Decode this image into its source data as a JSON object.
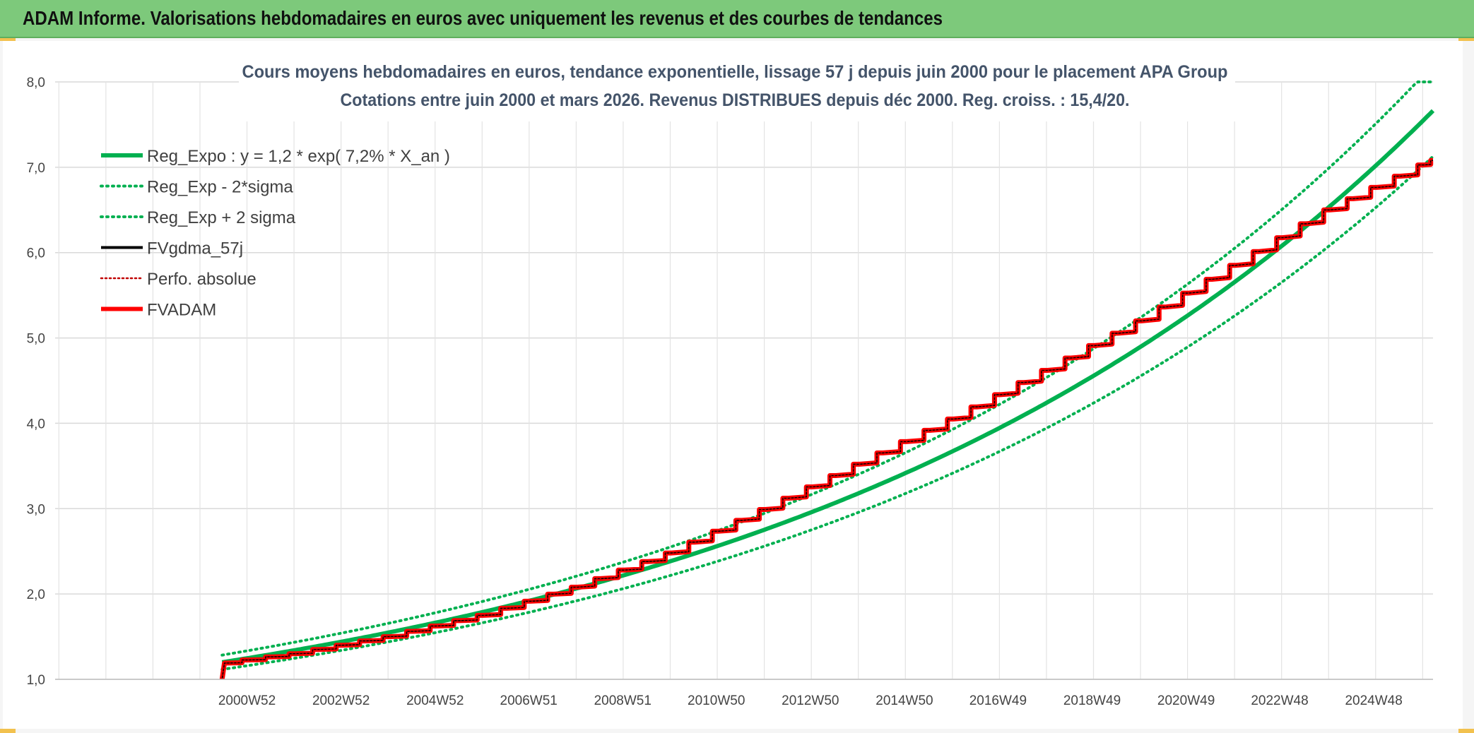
{
  "header": {
    "title": "ADAM Informe. Valorisations hebdomadaires en euros avec uniquement les revenus et des courbes de tendances"
  },
  "colors": {
    "header_bg": "#7dc97b",
    "trend_green": "#00b050",
    "fv_black": "#000000",
    "perf_red": "#c00000",
    "adam_red": "#ff0000",
    "grid": "#d9d9d9"
  },
  "chart_data": {
    "type": "line",
    "title_lines": [
      "Cours moyens hebdomadaires en euros, tendance exponentielle, lissage 57 j depuis juin 2000 pour le placement APA Group",
      "Cotations entre juin 2000 et mars 2026. Revenus DISTRIBUES depuis déc 2000. Reg. croiss. : 15,4/20."
    ],
    "x_tick_labels": [
      "2000W52",
      "2002W52",
      "2004W52",
      "2006W51",
      "2008W51",
      "2010W50",
      "2012W50",
      "2014W50",
      "2016W49",
      "2018W49",
      "2020W49",
      "2022W48",
      "2024W48"
    ],
    "x_tick_years": [
      2000.98,
      2002.98,
      2004.98,
      2006.97,
      2008.97,
      2010.96,
      2012.96,
      2014.96,
      2016.95,
      2018.95,
      2020.95,
      2022.94,
      2024.94
    ],
    "xlim": [
      1996.9,
      2026.2
    ],
    "data_start": 2000.45,
    "data_end": 2026.2,
    "ylim": [
      1.0,
      8.0
    ],
    "y_ticks": [
      "1,0",
      "2,0",
      "3,0",
      "4,0",
      "5,0",
      "6,0",
      "7,0",
      "8,0"
    ],
    "grid": true,
    "legend_position": "top-left",
    "regression": {
      "a": 1.2,
      "rate": 0.072,
      "origin": 2000.45,
      "sigma_factor_low": 0.93,
      "sigma_factor_high": 1.07
    },
    "adam_points": [
      [
        2000.45,
        1.0
      ],
      [
        2000.5,
        1.19
      ],
      [
        2002.0,
        1.3
      ],
      [
        2004.0,
        1.5
      ],
      [
        2006.0,
        1.75
      ],
      [
        2008.0,
        2.08
      ],
      [
        2010.0,
        2.48
      ],
      [
        2012.0,
        2.99
      ],
      [
        2014.0,
        3.52
      ],
      [
        2016.0,
        4.05
      ],
      [
        2018.0,
        4.62
      ],
      [
        2020.0,
        5.2
      ],
      [
        2022.0,
        5.85
      ],
      [
        2024.0,
        6.5
      ],
      [
        2026.2,
        7.08
      ]
    ],
    "series": [
      {
        "name": "Reg_Expo : y = 1,2 * exp( 7,2% *  X_an )",
        "style": "solid-thick",
        "color": "#00b050"
      },
      {
        "name": "Reg_Exp - 2*sigma",
        "style": "dotted",
        "color": "#00b050"
      },
      {
        "name": "Reg_Exp + 2 sigma",
        "style": "dotted",
        "color": "#00b050"
      },
      {
        "name": "FVgdma_57j",
        "style": "solid",
        "color": "#000000"
      },
      {
        "name": "Perfo. absolue",
        "style": "dotted-thin",
        "color": "#c00000"
      },
      {
        "name": "FVADAM",
        "style": "solid-thick",
        "color": "#ff0000"
      }
    ]
  }
}
